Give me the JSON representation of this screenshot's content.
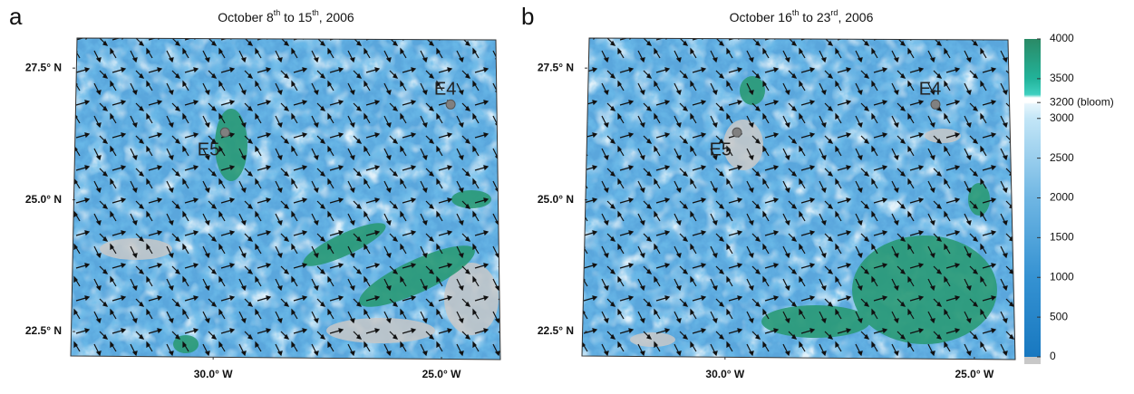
{
  "chart_data": [
    {
      "type": "map",
      "panel_label": "a",
      "title": {
        "parts": [
          "October 8",
          "th",
          " to 15",
          "th",
          ", 2006"
        ]
      },
      "xlim": [
        -33.02,
        -23.79
      ],
      "ylim": [
        22.02,
        28.07
      ],
      "xticks": [
        {
          "value": -30,
          "label": "30.0° W"
        },
        {
          "value": -25,
          "label": "25.0° W"
        }
      ],
      "yticks": [
        {
          "value": 27.5,
          "label": "27.5° N"
        },
        {
          "value": 25,
          "label": "25.0° N"
        },
        {
          "value": 22.5,
          "label": "22.5° N"
        }
      ],
      "stations": [
        {
          "name": "E4",
          "lon": -24.8,
          "lat": 26.81
        },
        {
          "name": "E5",
          "lon": -29.74,
          "lat": 26.28
        }
      ]
    },
    {
      "type": "map",
      "panel_label": "b",
      "title": {
        "parts": [
          "October 16",
          "th",
          " to 23",
          "rd",
          ", 2006"
        ]
      },
      "xlim": [
        -32.76,
        -24.18
      ],
      "ylim": [
        22.02,
        28.07
      ],
      "xticks": [
        {
          "value": -30,
          "label": "30.0° W"
        },
        {
          "value": -25,
          "label": "25.0° W"
        }
      ],
      "yticks": [
        {
          "value": 27.5,
          "label": "27.5° N"
        },
        {
          "value": 25,
          "label": "25.0° N"
        },
        {
          "value": 22.5,
          "label": "22.5° N"
        }
      ],
      "stations": [
        {
          "name": "E4",
          "lon": -25.78,
          "lat": 26.81
        },
        {
          "name": "E5",
          "lon": -29.76,
          "lat": 26.28
        }
      ]
    }
  ],
  "colorbar": {
    "lim": [
      0,
      4000
    ],
    "ticks": [
      0,
      500,
      1000,
      1500,
      2000,
      2500,
      3000,
      {
        "value": 3200,
        "label": "3200 (bloom)"
      },
      3500,
      4000
    ],
    "stops": [
      {
        "value": 0,
        "color": "#1878c0"
      },
      {
        "value": 1000,
        "color": "#3592d2"
      },
      {
        "value": 2000,
        "color": "#6fb6e3"
      },
      {
        "value": 3000,
        "color": "#c3e6f7"
      },
      {
        "value": 3180,
        "color": "#e6f5fc"
      },
      {
        "value": 3200,
        "color": "#ffffff"
      },
      {
        "value": 3260,
        "color": "#ffffff"
      },
      {
        "value": 3300,
        "color": "#3fd0c0"
      },
      {
        "value": 3500,
        "color": "#22b39a"
      },
      {
        "value": 4000,
        "color": "#2a8a66"
      }
    ]
  }
}
